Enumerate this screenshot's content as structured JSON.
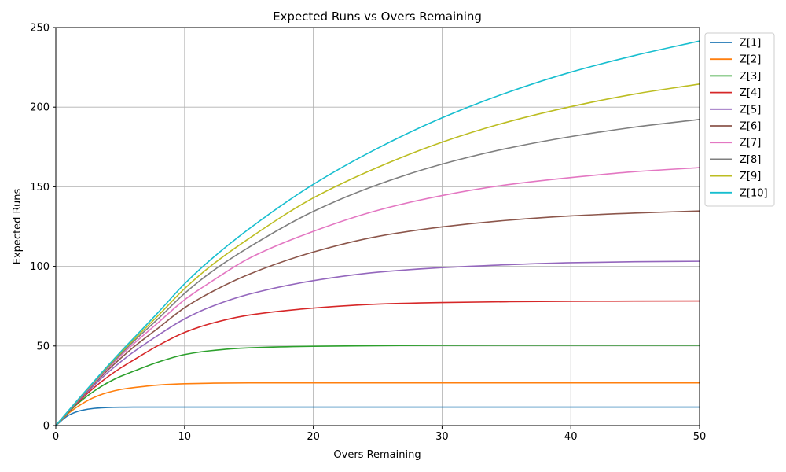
{
  "chart_data": {
    "type": "line",
    "title": "Expected Runs vs Overs Remaining",
    "xlabel": "Overs Remaining",
    "ylabel": "Expected Runs",
    "xlim": [
      0,
      50
    ],
    "ylim": [
      0,
      250
    ],
    "xticks": [
      0,
      10,
      20,
      30,
      40,
      50
    ],
    "yticks": [
      0,
      50,
      100,
      150,
      200,
      250
    ],
    "grid": true,
    "legend_position": "outside-top-right",
    "x": [
      0,
      1,
      2,
      3,
      4,
      5,
      6,
      8,
      10,
      12,
      15,
      20,
      25,
      30,
      35,
      40,
      45,
      50
    ],
    "series": [
      {
        "name": "Z[1]",
        "color": "#1f77b4",
        "values": [
          0,
          6.5,
          9.5,
          10.8,
          11.3,
          11.5,
          11.6,
          11.6,
          11.6,
          11.6,
          11.6,
          11.6,
          11.6,
          11.6,
          11.6,
          11.6,
          11.6,
          11.6
        ]
      },
      {
        "name": "Z[2]",
        "color": "#ff7f0e",
        "values": [
          0,
          7.8,
          13.5,
          17.8,
          20.7,
          22.6,
          23.8,
          25.5,
          26.3,
          26.6,
          26.8,
          26.8,
          26.8,
          26.8,
          26.8,
          26.8,
          26.8,
          26.8
        ]
      },
      {
        "name": "Z[3]",
        "color": "#2ca02c",
        "values": [
          0,
          8.5,
          15.8,
          21.8,
          26.8,
          30.8,
          34.0,
          40.0,
          44.6,
          47.0,
          48.8,
          49.8,
          50.2,
          50.4,
          50.5,
          50.5,
          50.5,
          50.5
        ]
      },
      {
        "name": "Z[4]",
        "color": "#d62728",
        "values": [
          0,
          8.8,
          16.8,
          24.0,
          30.4,
          36.0,
          41.0,
          50.5,
          58.5,
          64.0,
          69.4,
          73.8,
          76.3,
          77.3,
          77.8,
          78.1,
          78.2,
          78.3
        ]
      },
      {
        "name": "Z[5]",
        "color": "#9467bd",
        "values": [
          0,
          9.0,
          17.5,
          25.5,
          33.0,
          39.8,
          46.0,
          57.0,
          67.0,
          74.5,
          82.5,
          91.0,
          96.3,
          99.2,
          101.0,
          102.3,
          102.9,
          103.2
        ]
      },
      {
        "name": "Z[6]",
        "color": "#8c564b",
        "values": [
          0,
          9.1,
          18.0,
          26.5,
          34.5,
          42.0,
          49.0,
          61.5,
          74.0,
          83.5,
          95.0,
          109.0,
          118.8,
          124.8,
          128.9,
          131.7,
          133.5,
          134.8
        ]
      },
      {
        "name": "Z[7]",
        "color": "#e377c2",
        "values": [
          0,
          9.2,
          18.3,
          27.0,
          35.5,
          43.5,
          51.0,
          65.0,
          79.0,
          90.0,
          105.0,
          122.0,
          135.2,
          144.5,
          151.2,
          155.8,
          159.5,
          162.0
        ]
      },
      {
        "name": "Z[8]",
        "color": "#7f7f7f",
        "values": [
          0,
          9.3,
          18.5,
          27.5,
          36.2,
          44.5,
          52.5,
          67.5,
          83.0,
          96.0,
          112.0,
          134.5,
          151.3,
          164.2,
          174.0,
          181.5,
          187.5,
          192.3
        ]
      },
      {
        "name": "Z[9]",
        "color": "#bcbd22",
        "values": [
          0,
          9.4,
          18.7,
          27.8,
          36.8,
          45.3,
          53.5,
          69.5,
          86.0,
          100.0,
          117.5,
          143.0,
          162.2,
          178.0,
          190.5,
          200.3,
          208.3,
          214.5
        ]
      },
      {
        "name": "Z[10]",
        "color": "#17becf",
        "values": [
          0,
          9.5,
          18.9,
          28.1,
          37.2,
          46.0,
          54.5,
          71.5,
          89.0,
          104.0,
          123.5,
          151.5,
          174.2,
          193.3,
          209.0,
          222.0,
          232.5,
          241.5
        ]
      }
    ]
  }
}
